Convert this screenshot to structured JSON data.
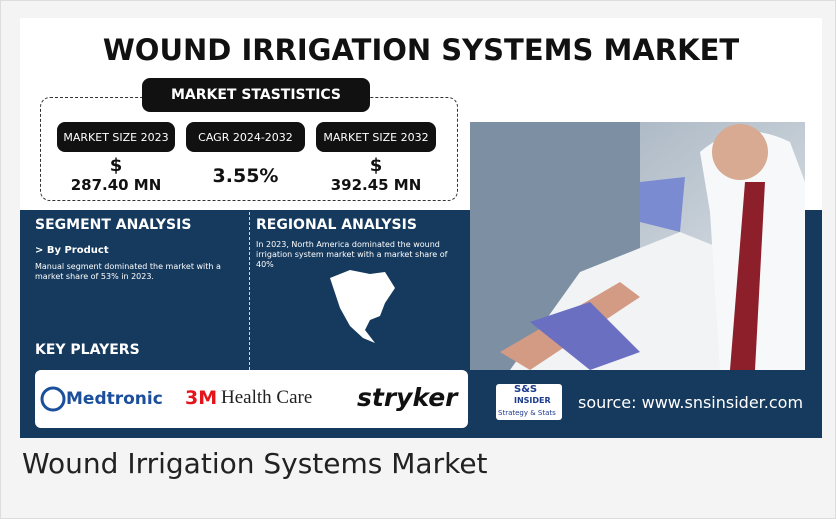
{
  "header": {
    "title": "WOUND IRRIGATION SYSTEMS MARKET"
  },
  "statistics": {
    "heading": "MARKET STASTISTICS",
    "items": [
      {
        "label": "MARKET SIZE 2023",
        "currency": "$",
        "value": "287.40 MN"
      },
      {
        "label": "CAGR 2024-2032",
        "value": "3.55%"
      },
      {
        "label": "MARKET SIZE 2032",
        "currency": "$",
        "value": "392.45 MN"
      }
    ]
  },
  "segment": {
    "heading": "SEGMENT ANALYSIS",
    "subheading": "> By Product",
    "text": "Manual segment dominated the market with a market share of 53% in 2023."
  },
  "regional": {
    "heading": "REGIONAL ANALYSIS",
    "text": "In 2023, North America dominated the wound irrigation system market with a market share of 40%"
  },
  "key_players": {
    "heading": "KEY PLAYERS",
    "logos": [
      "Medtronic",
      "3M",
      "Health Care",
      "stryker"
    ]
  },
  "brand": {
    "line1": "S&S",
    "line2": "INSIDER",
    "line3": "Strategy & Stats"
  },
  "source": "source: www.snsinsider.com",
  "caption": "Wound Irrigation Systems Market"
}
